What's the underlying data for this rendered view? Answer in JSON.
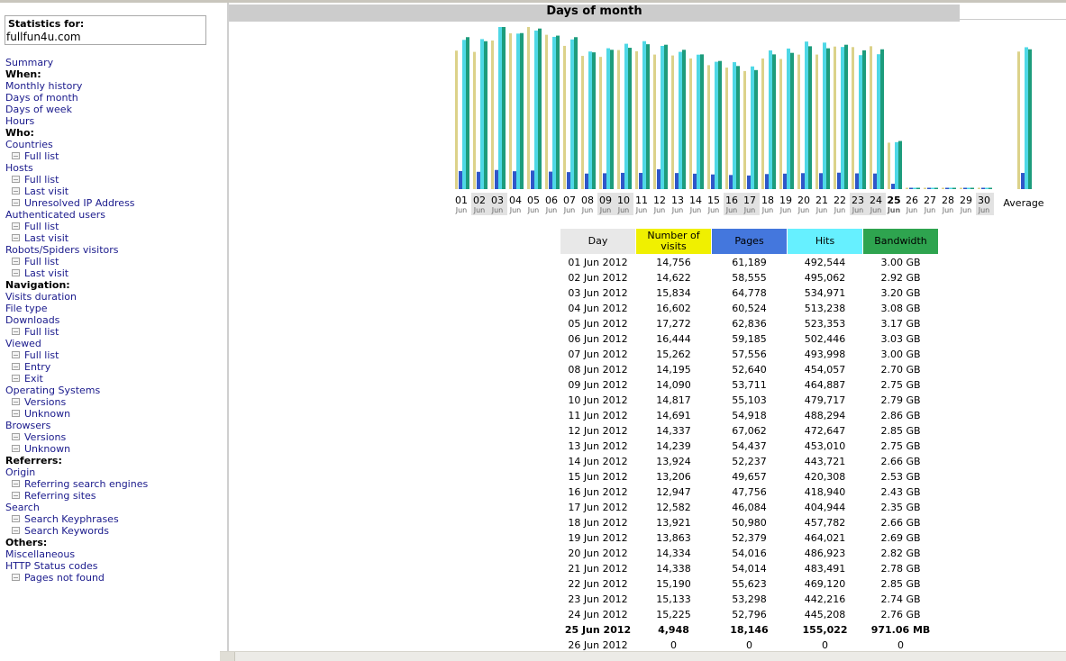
{
  "sidebar": {
    "stats_label": "Statistics for:",
    "site": "fullfun4u.com",
    "menu": [
      {
        "label": "Summary",
        "type": "link"
      },
      {
        "label": "When:",
        "type": "head"
      },
      {
        "label": "Monthly history",
        "type": "link"
      },
      {
        "label": "Days of month",
        "type": "link"
      },
      {
        "label": "Days of week",
        "type": "link"
      },
      {
        "label": "Hours",
        "type": "link"
      },
      {
        "label": "Who:",
        "type": "head"
      },
      {
        "label": "Countries",
        "type": "link"
      },
      {
        "label": "Full list",
        "type": "sub"
      },
      {
        "label": "Hosts",
        "type": "link"
      },
      {
        "label": "Full list",
        "type": "sub"
      },
      {
        "label": "Last visit",
        "type": "sub"
      },
      {
        "label": "Unresolved IP Address",
        "type": "sub"
      },
      {
        "label": "Authenticated users",
        "type": "link"
      },
      {
        "label": "Full list",
        "type": "sub"
      },
      {
        "label": "Last visit",
        "type": "sub"
      },
      {
        "label": "Robots/Spiders visitors",
        "type": "link"
      },
      {
        "label": "Full list",
        "type": "sub"
      },
      {
        "label": "Last visit",
        "type": "sub"
      },
      {
        "label": "Navigation:",
        "type": "head"
      },
      {
        "label": "Visits duration",
        "type": "link"
      },
      {
        "label": "File type",
        "type": "link"
      },
      {
        "label": "Downloads",
        "type": "link"
      },
      {
        "label": "Full list",
        "type": "sub"
      },
      {
        "label": "Viewed",
        "type": "link"
      },
      {
        "label": "Full list",
        "type": "sub"
      },
      {
        "label": "Entry",
        "type": "sub"
      },
      {
        "label": "Exit",
        "type": "sub"
      },
      {
        "label": "Operating Systems",
        "type": "link"
      },
      {
        "label": "Versions",
        "type": "sub"
      },
      {
        "label": "Unknown",
        "type": "sub"
      },
      {
        "label": "Browsers",
        "type": "link"
      },
      {
        "label": "Versions",
        "type": "sub"
      },
      {
        "label": "Unknown",
        "type": "sub"
      },
      {
        "label": "Referrers:",
        "type": "head"
      },
      {
        "label": "Origin",
        "type": "link"
      },
      {
        "label": "Referring search engines",
        "type": "sub"
      },
      {
        "label": "Referring sites",
        "type": "sub"
      },
      {
        "label": "Search",
        "type": "link"
      },
      {
        "label": "Search Keyphrases",
        "type": "sub"
      },
      {
        "label": "Search Keywords",
        "type": "sub"
      },
      {
        "label": "Others:",
        "type": "head"
      },
      {
        "label": "Miscellaneous",
        "type": "link"
      },
      {
        "label": "HTTP Status codes",
        "type": "link"
      },
      {
        "label": "Pages not found",
        "type": "sub"
      }
    ]
  },
  "main": {
    "title": "Days of month",
    "average_label": "Average"
  },
  "colors": {
    "visits": "#dcd28a",
    "pages": "#2f57c9",
    "hits": "#4fd8e6",
    "bandwidth": "#1d9c7c",
    "header_day": "#e8e8e8",
    "header_visits": "#f0f000",
    "header_pages": "#4477dd",
    "header_hits": "#66f0ff",
    "header_bandwidth": "#2ea44f"
  },
  "table": {
    "headers": [
      "Day",
      "Number of visits",
      "Pages",
      "Hits",
      "Bandwidth"
    ],
    "rows": [
      [
        "01 Jun 2012",
        "14,756",
        "61,189",
        "492,544",
        "3.00 GB"
      ],
      [
        "02 Jun 2012",
        "14,622",
        "58,555",
        "495,062",
        "2.92 GB"
      ],
      [
        "03 Jun 2012",
        "15,834",
        "64,778",
        "534,971",
        "3.20 GB"
      ],
      [
        "04 Jun 2012",
        "16,602",
        "60,524",
        "513,238",
        "3.08 GB"
      ],
      [
        "05 Jun 2012",
        "17,272",
        "62,836",
        "523,353",
        "3.17 GB"
      ],
      [
        "06 Jun 2012",
        "16,444",
        "59,185",
        "502,446",
        "3.03 GB"
      ],
      [
        "07 Jun 2012",
        "15,262",
        "57,556",
        "493,998",
        "3.00 GB"
      ],
      [
        "08 Jun 2012",
        "14,195",
        "52,640",
        "454,057",
        "2.70 GB"
      ],
      [
        "09 Jun 2012",
        "14,090",
        "53,711",
        "464,887",
        "2.75 GB"
      ],
      [
        "10 Jun 2012",
        "14,817",
        "55,103",
        "479,717",
        "2.79 GB"
      ],
      [
        "11 Jun 2012",
        "14,691",
        "54,918",
        "488,294",
        "2.86 GB"
      ],
      [
        "12 Jun 2012",
        "14,337",
        "67,062",
        "472,647",
        "2.85 GB"
      ],
      [
        "13 Jun 2012",
        "14,239",
        "54,437",
        "453,010",
        "2.75 GB"
      ],
      [
        "14 Jun 2012",
        "13,924",
        "52,237",
        "443,721",
        "2.66 GB"
      ],
      [
        "15 Jun 2012",
        "13,206",
        "49,657",
        "420,308",
        "2.53 GB"
      ],
      [
        "16 Jun 2012",
        "12,947",
        "47,756",
        "418,940",
        "2.43 GB"
      ],
      [
        "17 Jun 2012",
        "12,582",
        "46,084",
        "404,944",
        "2.35 GB"
      ],
      [
        "18 Jun 2012",
        "13,921",
        "50,980",
        "457,782",
        "2.66 GB"
      ],
      [
        "19 Jun 2012",
        "13,863",
        "52,379",
        "464,021",
        "2.69 GB"
      ],
      [
        "20 Jun 2012",
        "14,334",
        "54,016",
        "486,923",
        "2.82 GB"
      ],
      [
        "21 Jun 2012",
        "14,338",
        "54,014",
        "483,491",
        "2.78 GB"
      ],
      [
        "22 Jun 2012",
        "15,190",
        "55,623",
        "469,120",
        "2.85 GB"
      ],
      [
        "23 Jun 2012",
        "15,133",
        "53,298",
        "442,216",
        "2.74 GB"
      ],
      [
        "24 Jun 2012",
        "15,225",
        "52,796",
        "445,208",
        "2.76 GB"
      ],
      [
        "25 Jun 2012",
        "4,948",
        "18,146",
        "155,022",
        "971.06 MB"
      ],
      [
        "26 Jun 2012",
        "0",
        "0",
        "0",
        "0"
      ]
    ]
  },
  "chart_data": {
    "type": "bar",
    "categories": [
      "01",
      "02",
      "03",
      "04",
      "05",
      "06",
      "07",
      "08",
      "09",
      "10",
      "11",
      "12",
      "13",
      "14",
      "15",
      "16",
      "17",
      "18",
      "19",
      "20",
      "21",
      "22",
      "23",
      "24",
      "25",
      "26",
      "27",
      "28",
      "29",
      "30"
    ],
    "month_labels": [
      "Jun",
      "Jun",
      "Jun",
      "Jun",
      "Jun",
      "Jun",
      "Jun",
      "Jun",
      "Jun",
      "Jun",
      "Jun",
      "Jun",
      "Jun",
      "Jun",
      "Jun",
      "Jun",
      "Jun",
      "Jun",
      "Jun",
      "Jun",
      "Jun",
      "Jun",
      "Jun",
      "Jun",
      "Jun",
      "Jun",
      "Jun",
      "Jun",
      "Jun",
      "Jun"
    ],
    "weekend_days": [
      "02",
      "03",
      "09",
      "10",
      "16",
      "17",
      "23",
      "24",
      "30"
    ],
    "current_day": "25",
    "series": [
      {
        "values": [
          14756,
          14622,
          15834,
          16602,
          17272,
          16444,
          15262,
          14195,
          14090,
          14817,
          14691,
          14337,
          14239,
          13924,
          13206,
          12947,
          12582,
          13921,
          13863,
          14334,
          14338,
          15190,
          15133,
          15225,
          4948,
          0,
          0,
          0,
          0,
          0
        ]
      },
      {
        "values": [
          61189,
          58555,
          64778,
          60524,
          62836,
          59185,
          57556,
          52640,
          53711,
          55103,
          54918,
          67062,
          54437,
          52237,
          49657,
          47756,
          46084,
          50980,
          52379,
          54016,
          54014,
          55623,
          53298,
          52796,
          18146,
          0,
          0,
          0,
          0,
          0
        ]
      },
      {
        "values": [
          492544,
          495062,
          534971,
          513238,
          523353,
          502446,
          493998,
          454057,
          464887,
          479717,
          488294,
          472647,
          453010,
          443721,
          420308,
          418940,
          404944,
          457782,
          464021,
          486923,
          483491,
          469120,
          442216,
          445208,
          155022,
          0,
          0,
          0,
          0,
          0
        ]
      },
      {
        "values": [
          3.0,
          2.92,
          3.2,
          3.08,
          3.17,
          3.03,
          3.0,
          2.7,
          2.75,
          2.79,
          2.86,
          2.85,
          2.75,
          2.66,
          2.53,
          2.43,
          2.35,
          2.66,
          2.69,
          2.82,
          2.78,
          2.85,
          2.74,
          2.76,
          0.95,
          0,
          0,
          0,
          0,
          0
        ]
      }
    ],
    "average": [
      14656,
      54742,
      468251,
      2.76
    ],
    "xlabel": "",
    "ylabel": ""
  }
}
